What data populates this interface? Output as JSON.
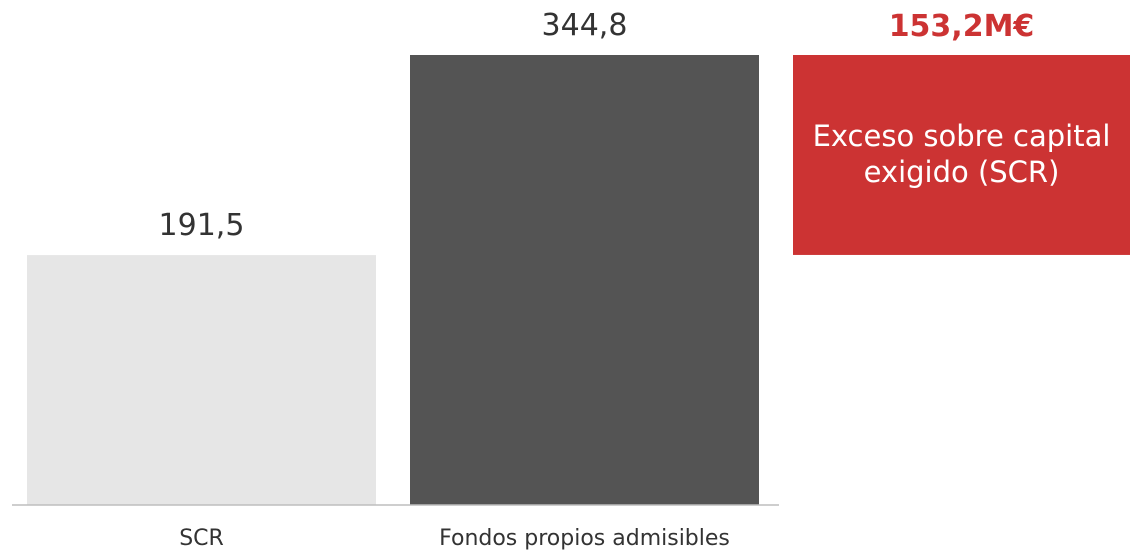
{
  "chart_data": {
    "type": "bar",
    "categories": [
      "SCR",
      "Fondos propios admisibles"
    ],
    "values": [
      191.5,
      344.8
    ],
    "value_labels": [
      "191,5",
      "344,8"
    ],
    "colors": [
      "#e6e6e6",
      "#545454"
    ],
    "ylim": [
      0,
      344.8
    ],
    "grid": false,
    "excess": {
      "value": 153.2,
      "value_label": "153,2M€",
      "text_lines": [
        "Exceso sobre capital",
        "exigido (SCR)"
      ],
      "color": "#cc3333"
    }
  }
}
